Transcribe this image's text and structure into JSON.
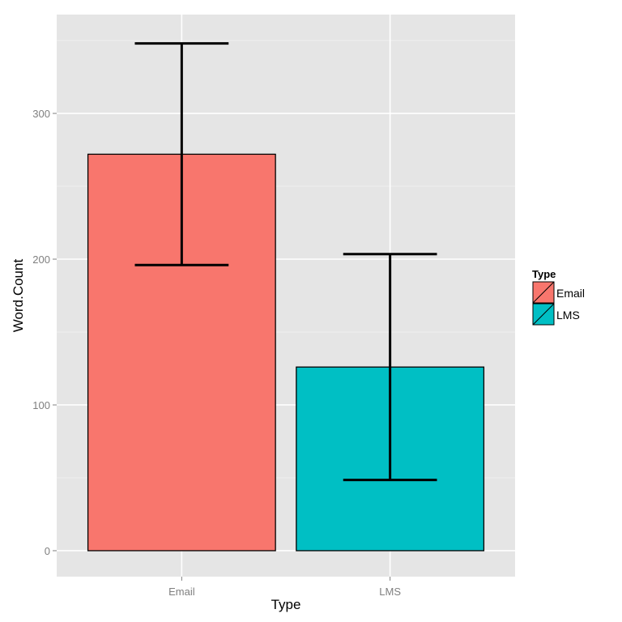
{
  "chart_data": {
    "type": "bar",
    "title": "",
    "xlabel": "Type",
    "ylabel": "Word.Count",
    "categories": [
      "Email",
      "LMS"
    ],
    "values": [
      272,
      126
    ],
    "error_bars": [
      {
        "lower": 196,
        "upper": 348
      },
      {
        "lower": 48.5,
        "upper": 203.5
      }
    ],
    "colors": [
      "#F8766D",
      "#00BFC4"
    ],
    "ylim": [
      -17.8,
      367.8
    ],
    "yticks": [
      0,
      100,
      200,
      300
    ],
    "ytick_labels": [
      "0",
      "100",
      "200",
      "300"
    ],
    "grid": true,
    "legend": {
      "title": "Type",
      "placement": "right",
      "entries": [
        "Email",
        "LMS"
      ]
    }
  }
}
